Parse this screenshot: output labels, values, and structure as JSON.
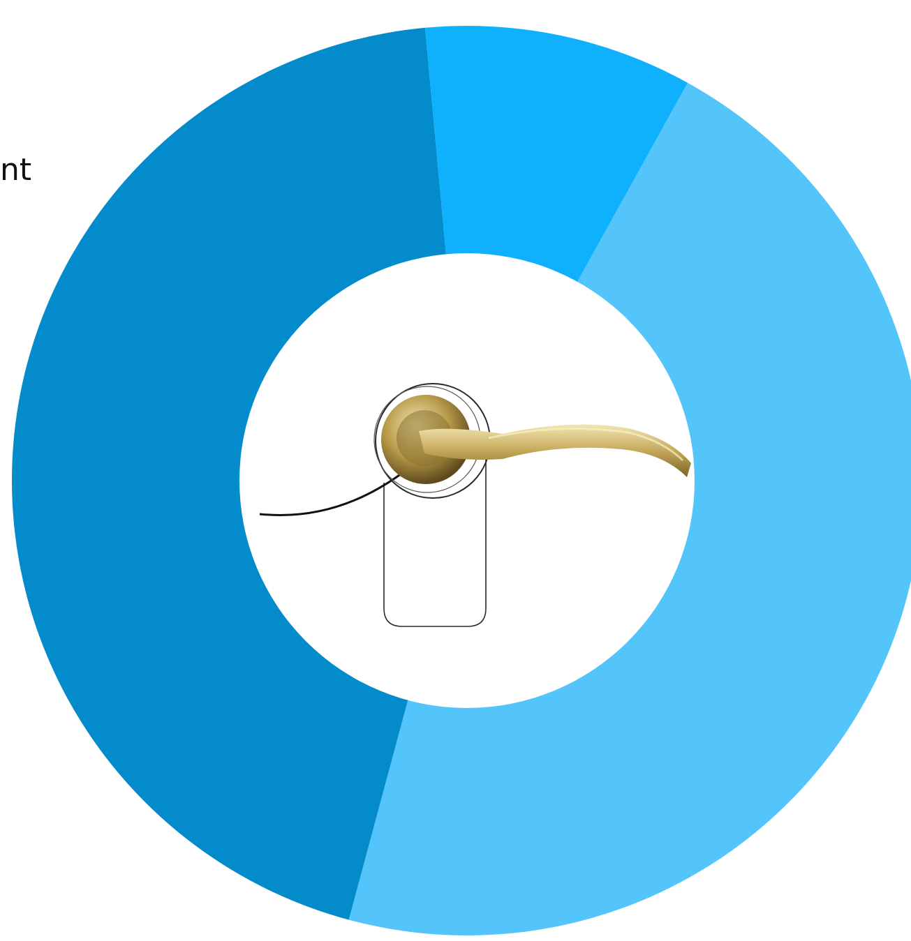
{
  "cropped_text": "nt",
  "colors": {
    "background": "#ffffff",
    "center": "#ffffff",
    "handle_gold_light": "#f0e2a6",
    "handle_gold_dark": "#6e5a24",
    "outline": "#1a1a1a"
  },
  "icons": {
    "center_image": "door-lever-handle-icon"
  },
  "chart_data": {
    "type": "pie",
    "variant": "donut",
    "title": "",
    "legend": "none",
    "start_angle_deg": -61,
    "slices": [
      {
        "label": "",
        "value": 0.4305,
        "color": "#53c5fb"
      },
      {
        "label": "",
        "value": 0.4139,
        "color": "#038bcb"
      },
      {
        "label": "",
        "value": 0.0889,
        "color": "#0fb1fd"
      }
    ]
  }
}
